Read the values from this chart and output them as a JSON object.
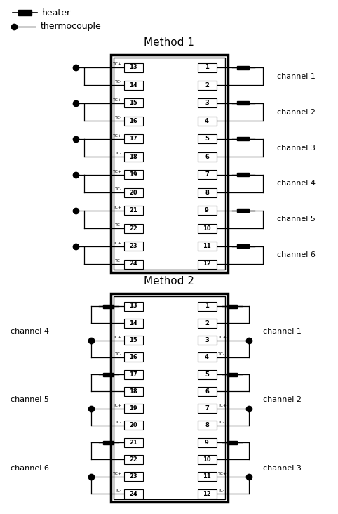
{
  "fig_width": 4.82,
  "fig_height": 7.32,
  "dpi": 100,
  "bg_color": "#ffffff",
  "m1_left_pins": [
    13,
    14,
    15,
    16,
    17,
    18,
    19,
    20,
    21,
    22,
    23,
    24
  ],
  "m1_right_pins": [
    1,
    2,
    3,
    4,
    5,
    6,
    7,
    8,
    9,
    10,
    11,
    12
  ],
  "m2_left_pins": [
    13,
    14,
    15,
    16,
    17,
    18,
    19,
    20,
    21,
    22,
    23,
    24
  ],
  "m2_right_pins": [
    1,
    2,
    3,
    4,
    5,
    6,
    7,
    8,
    9,
    10,
    11,
    12
  ],
  "m1_channels": [
    "channel 1",
    "channel 2",
    "channel 3",
    "channel 4",
    "channel 5",
    "channel 6"
  ],
  "m2_channels_left": [
    "channel 4",
    "channel 5",
    "channel 6"
  ],
  "m2_channels_right": [
    "channel 1",
    "channel 2",
    "channel 3"
  ]
}
